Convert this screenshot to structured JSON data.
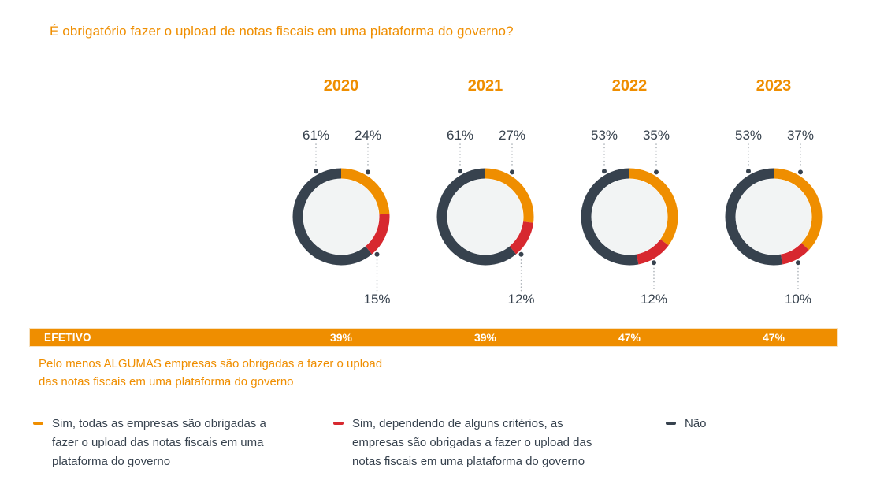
{
  "title": "É obrigatório fazer o upload de notas fiscais em uma plataforma do governo?",
  "colors": {
    "orange": "#EF8E00",
    "red": "#D7282F",
    "dark": "#37424E",
    "donut_inner": "#F2F4F4",
    "leader": "#A9AFB5",
    "bar_text": "#FFFFFF"
  },
  "chart_data": {
    "type": "pie",
    "variant": "donut",
    "unit": "%",
    "years": [
      "2020",
      "2021",
      "2022",
      "2023"
    ],
    "series": [
      {
        "name": "Sim, todas as empresas são obrigadas a fazer o upload das notas fiscais em uma plataforma do governo",
        "color": "#EF8E00",
        "values": [
          24,
          27,
          35,
          37
        ]
      },
      {
        "name": "Sim, dependendo de alguns critérios, as empresas são obrigadas a fazer o upload das notas fiscais em uma plataforma do governo",
        "color": "#D7282F",
        "values": [
          15,
          12,
          12,
          10
        ]
      },
      {
        "name": "Não",
        "color": "#37424E",
        "values": [
          61,
          61,
          53,
          53
        ]
      }
    ]
  },
  "efetivo": {
    "label": "EFETIVO",
    "values": [
      39,
      39,
      47,
      47
    ],
    "note_line1": "Pelo menos ALGUMAS empresas são obrigadas a fazer o upload",
    "note_line2": "das notas fiscais em uma plataforma do governo"
  }
}
